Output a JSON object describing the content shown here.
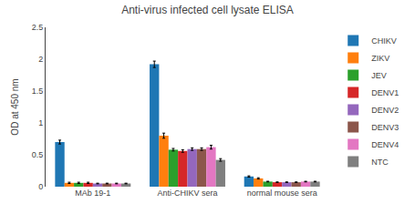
{
  "chart_data": {
    "type": "bar",
    "title": "Anti-virus infected cell lysate ELISA",
    "ylabel": "OD at 450 nm",
    "categories": [
      "MAb 19-1",
      "Anti-CHIKV sera",
      "normal mouse sera"
    ],
    "series": [
      {
        "name": "CHIKV",
        "values": [
          0.7,
          1.92,
          0.16
        ],
        "errors": [
          0.03,
          0.05,
          0.01
        ]
      },
      {
        "name": "ZIKV",
        "values": [
          0.06,
          0.8,
          0.13
        ],
        "errors": [
          0.01,
          0.04,
          0.01
        ]
      },
      {
        "name": "JEV",
        "values": [
          0.06,
          0.58,
          0.08
        ],
        "errors": [
          0.01,
          0.02,
          0.005
        ]
      },
      {
        "name": "DENV1",
        "values": [
          0.06,
          0.56,
          0.07
        ],
        "errors": [
          0.01,
          0.02,
          0.005
        ]
      },
      {
        "name": "DENV2",
        "values": [
          0.05,
          0.59,
          0.07
        ],
        "errors": [
          0.005,
          0.02,
          0.005
        ]
      },
      {
        "name": "DENV3",
        "values": [
          0.05,
          0.59,
          0.07
        ],
        "errors": [
          0.005,
          0.02,
          0.005
        ]
      },
      {
        "name": "DENV4",
        "values": [
          0.05,
          0.62,
          0.08
        ],
        "errors": [
          0.005,
          0.03,
          0.005
        ]
      },
      {
        "name": "NTC",
        "values": [
          0.05,
          0.42,
          0.08
        ],
        "errors": [
          0.005,
          0.02,
          0.005
        ]
      }
    ],
    "ylim": [
      0,
      2.5
    ],
    "yticks": [
      0,
      0.5,
      1,
      1.5,
      2,
      2.5
    ],
    "grid": false,
    "legend": "right"
  }
}
